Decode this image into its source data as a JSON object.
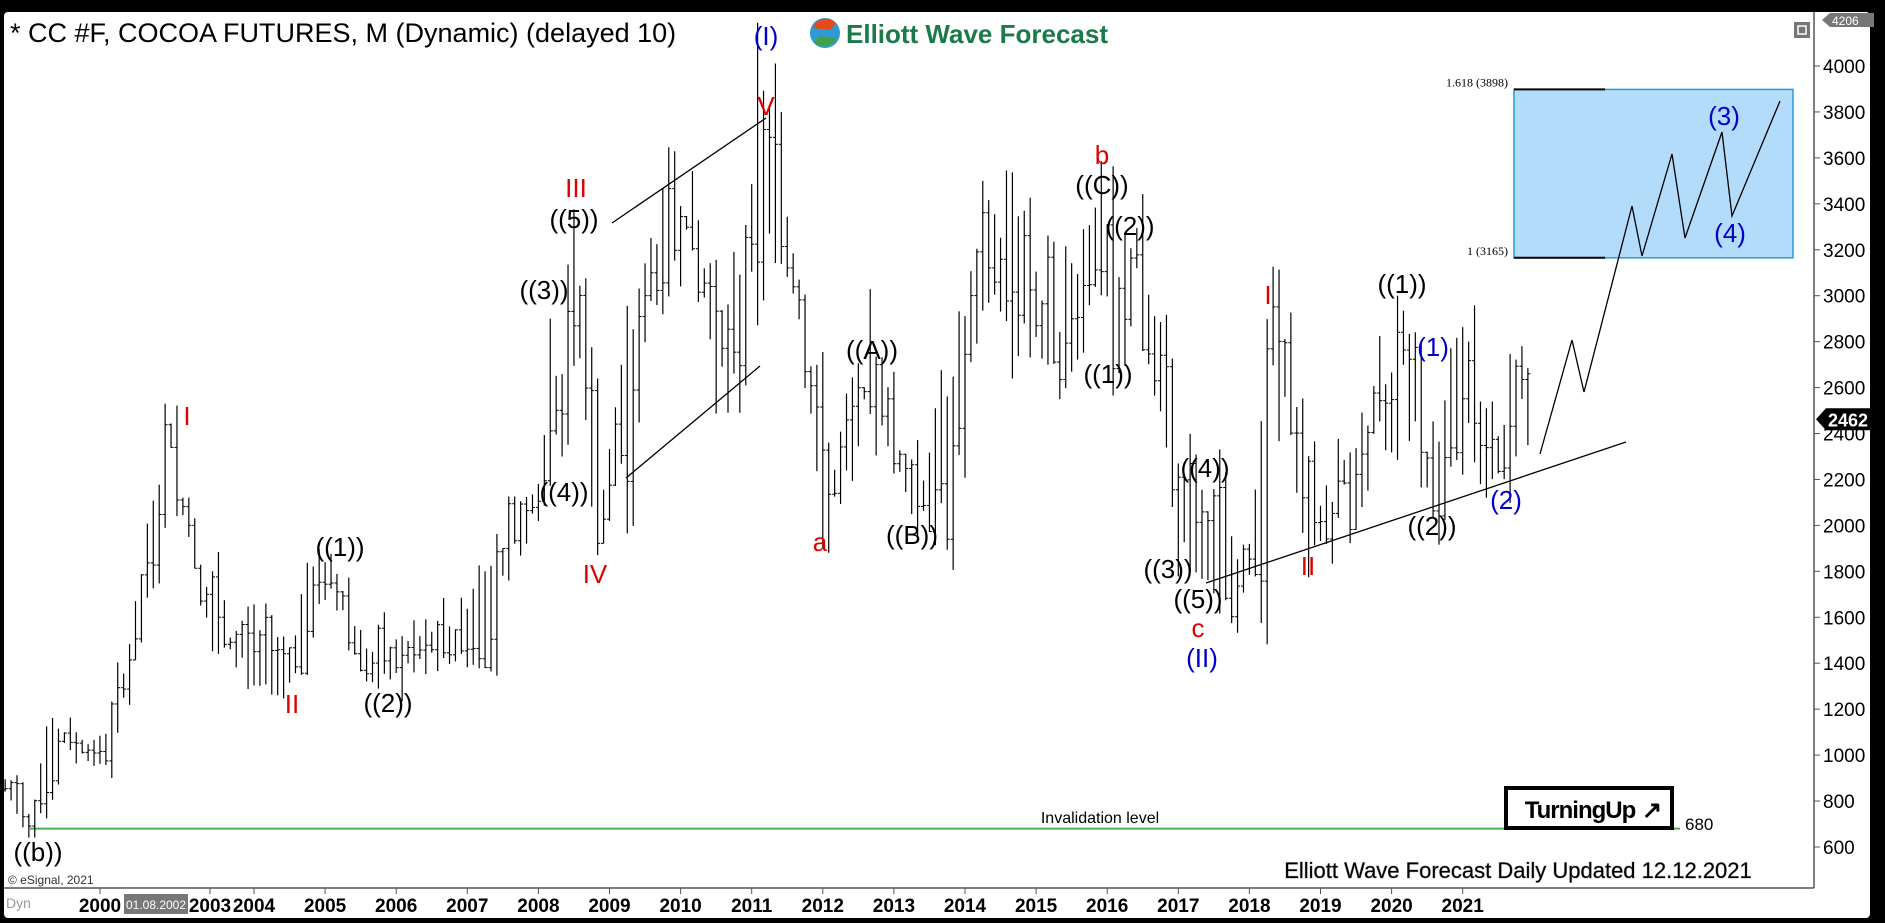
{
  "header": {
    "title": "* CC #F, COCOA FUTURES, M (Dynamic) (delayed 10)",
    "logo_text": "Elliott Wave Forecast"
  },
  "footer": {
    "updated": "Elliott Wave Forecast Daily Updated 12.12.2021",
    "copyright": "© eSignal, 2021",
    "dyn": "Dyn",
    "cursor_date": "01.08.2002"
  },
  "badge": {
    "turning_up": "TurningUp",
    "arrow": "↗"
  },
  "colors": {
    "wave_black": "#000000",
    "wave_red": "#e00000",
    "wave_blue": "#0000cc",
    "fib_box": "#b3dcfa",
    "invalidation": "#4caf50"
  },
  "chart_data": {
    "type": "ohlc-bar",
    "symbol": "CC #F",
    "interval": "Monthly",
    "ylim": [
      560,
      4206
    ],
    "y_ticks": [
      600,
      800,
      1000,
      1200,
      1400,
      1600,
      1800,
      2000,
      2200,
      2400,
      2600,
      2800,
      3000,
      3200,
      3400,
      3600,
      3800,
      4000
    ],
    "x_ticks": [
      "2000",
      "2003",
      "2004",
      "2005",
      "2006",
      "2007",
      "2008",
      "2009",
      "2010",
      "2011",
      "2012",
      "2013",
      "2014",
      "2015",
      "2016",
      "2017",
      "2018",
      "2019",
      "2020",
      "2021"
    ],
    "axis_top_label": "4206",
    "last_price": "2462",
    "price_path": [
      [
        2000.5,
        850
      ],
      [
        2000.84,
        680
      ],
      [
        2001.1,
        1100
      ],
      [
        2001.85,
        1000
      ],
      [
        2002.3,
        1500
      ],
      [
        2002.8,
        2400
      ],
      [
        2003.4,
        1500
      ],
      [
        2004.5,
        1350
      ],
      [
        2004.7,
        1700
      ],
      [
        2005.0,
        1800
      ],
      [
        2005.7,
        1350
      ],
      [
        2006.8,
        1500
      ],
      [
        2007.5,
        1900
      ],
      [
        2008.1,
        2200
      ],
      [
        2008.2,
        2900
      ],
      [
        2008.3,
        2300
      ],
      [
        2008.5,
        3300
      ],
      [
        2008.8,
        1900
      ],
      [
        2009.2,
        2600
      ],
      [
        2009.9,
        3500
      ],
      [
        2010.7,
        2600
      ],
      [
        2011.1,
        3780
      ],
      [
        2011.7,
        2900
      ],
      [
        2012.0,
        2000
      ],
      [
        2012.7,
        2700
      ],
      [
        2013.3,
        2050
      ],
      [
        2014.0,
        2800
      ],
      [
        2014.7,
        3350
      ],
      [
        2015.2,
        2700
      ],
      [
        2015.9,
        3400
      ],
      [
        2016.1,
        2750
      ],
      [
        2016.4,
        3250
      ],
      [
        2017.0,
        2000
      ],
      [
        2017.3,
        1800
      ],
      [
        2018.0,
        1800
      ],
      [
        2018.3,
        2950
      ],
      [
        2018.8,
        2000
      ],
      [
        2019.0,
        2000
      ],
      [
        2020.0,
        2600
      ],
      [
        2020.1,
        3000
      ],
      [
        2020.55,
        2100
      ],
      [
        2020.9,
        2800
      ],
      [
        2021.5,
        2250
      ],
      [
        2021.8,
        2780
      ],
      [
        2021.95,
        2462
      ]
    ],
    "fib_levels": [
      {
        "label": "1.618 (3898)",
        "value": 3898
      },
      {
        "label": "1 (3165)",
        "value": 3165
      }
    ],
    "invalidation": {
      "label": "Invalidation level",
      "value": 680,
      "value_label": "680"
    },
    "wave_labels": [
      "(I)",
      "V",
      "III",
      "((5))",
      "((3))",
      "((4))",
      "IV",
      "I",
      "((1))",
      "II",
      "((2))",
      "((b))",
      "a",
      "((A))",
      "((B))",
      "b",
      "((C))",
      "((2))",
      "((1))",
      "((4))",
      "((3))",
      "((5))",
      "c",
      "(II)",
      "I",
      "II",
      "((1))",
      "(1)",
      "((2))",
      "(2)",
      "(3)",
      "(4)"
    ]
  }
}
